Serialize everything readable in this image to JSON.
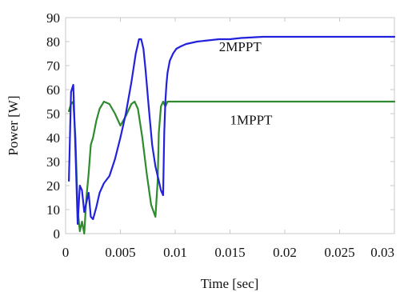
{
  "chart_data": {
    "type": "line",
    "title": "",
    "xlabel": "Time [sec]",
    "ylabel": "Power [W]",
    "xlim": [
      0,
      0.03
    ],
    "ylim": [
      0,
      90
    ],
    "x_ticks": [
      0,
      0.005,
      0.01,
      0.015,
      0.02,
      0.025,
      0.03
    ],
    "x_tick_labels": [
      "0",
      "0.005",
      "0.01",
      "0.015",
      "0.02",
      "0.025",
      "0.03"
    ],
    "y_ticks": [
      0,
      10,
      20,
      30,
      40,
      50,
      60,
      70,
      80,
      90
    ],
    "y_tick_labels": [
      "0",
      "10",
      "20",
      "30",
      "40",
      "50",
      "60",
      "70",
      "80",
      "90"
    ],
    "grid": false,
    "legend": "none",
    "series": [
      {
        "name": "2MPPT",
        "color": "#2222dd",
        "x": [
          0.0003,
          0.0005,
          0.0007,
          0.0009,
          0.0011,
          0.0013,
          0.0015,
          0.0017,
          0.0019,
          0.0021,
          0.0023,
          0.0025,
          0.0028,
          0.0031,
          0.0035,
          0.004,
          0.0045,
          0.005,
          0.0055,
          0.006,
          0.0064,
          0.0067,
          0.0069,
          0.0071,
          0.0073,
          0.0076,
          0.0079,
          0.0082,
          0.0085,
          0.0087,
          0.0089,
          0.009,
          0.0091,
          0.0092,
          0.0093,
          0.0095,
          0.0098,
          0.0101,
          0.0105,
          0.011,
          0.012,
          0.013,
          0.014,
          0.015,
          0.016,
          0.018,
          0.02,
          0.022,
          0.025,
          0.03
        ],
        "y": [
          22,
          59,
          62,
          35,
          4,
          20,
          18,
          9,
          13,
          17,
          7,
          6,
          11,
          17,
          21,
          24,
          31,
          40,
          50,
          63,
          75,
          81,
          81,
          77,
          68,
          52,
          37,
          28,
          22,
          18,
          16,
          42,
          55,
          62,
          67,
          72,
          75,
          77,
          78,
          79,
          80,
          80.5,
          81,
          81,
          81.5,
          82,
          82,
          82,
          82,
          82
        ]
      },
      {
        "name": "1MPPT",
        "color": "#2e8b2e",
        "x": [
          0.0003,
          0.0005,
          0.0007,
          0.0009,
          0.0011,
          0.0013,
          0.0015,
          0.0017,
          0.0019,
          0.0021,
          0.0023,
          0.0025,
          0.0028,
          0.0031,
          0.0035,
          0.004,
          0.0045,
          0.005,
          0.0055,
          0.006,
          0.0063,
          0.0066,
          0.007,
          0.0074,
          0.0078,
          0.0082,
          0.0084,
          0.0085,
          0.0087,
          0.0089,
          0.0091,
          0.0093,
          0.0097,
          0.0105,
          0.012,
          0.015,
          0.02,
          0.025,
          0.03
        ],
        "y": [
          51,
          54,
          55,
          40,
          10,
          1,
          5,
          0,
          15,
          25,
          37,
          40,
          47,
          52,
          55,
          54,
          50,
          45,
          49,
          54,
          55,
          52,
          40,
          25,
          12,
          7,
          22,
          42,
          53,
          55,
          53,
          55,
          55,
          55,
          55,
          55,
          55,
          55,
          55
        ]
      }
    ],
    "annotations": [
      {
        "text": "2MPPT",
        "x": 0.014,
        "y": 76
      },
      {
        "text": "1MPPT",
        "x": 0.015,
        "y": 45.5
      }
    ]
  }
}
